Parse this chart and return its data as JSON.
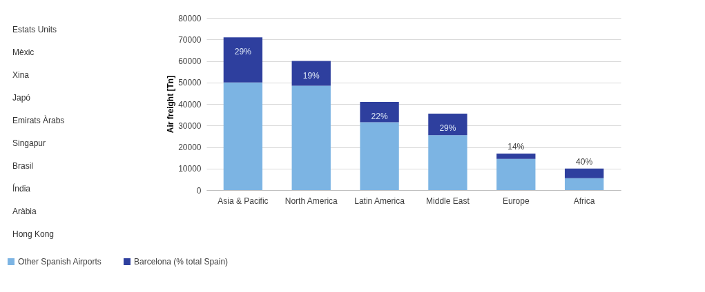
{
  "chart_data": [
    {
      "type": "other",
      "annotations": [
        "Estats Units",
        "Mèxic",
        "Xina",
        "Japó",
        "Emirats Àrabs",
        "Singapur",
        "Brasil",
        "Índia",
        "Aràbia",
        "Hong Kong"
      ]
    },
    {
      "type": "bar",
      "stacked": true,
      "ylabel": "Air freight [Tn]",
      "categories": [
        "Asia & Pacific",
        "North America",
        "Latin America",
        "Middle East",
        "Europe",
        "Africa"
      ],
      "series": [
        {
          "name": "Other Spanish Airports",
          "color": "#7cb4e3",
          "values": [
            50000,
            48500,
            31500,
            25500,
            14500,
            5500
          ]
        },
        {
          "name": "Barcelona (% total Spain)",
          "color": "#2e3f9e",
          "values": [
            21000,
            11500,
            9500,
            10000,
            2500,
            4500
          ]
        }
      ],
      "annotations": [
        {
          "text": "29%",
          "x": "Asia & Pacific",
          "y": 71000
        },
        {
          "text": "19%",
          "x": "North America",
          "y": 60000
        },
        {
          "text": "22%",
          "x": "Latin America",
          "y": 41000
        },
        {
          "text": "29%",
          "x": "Middle East",
          "y": 35500
        },
        {
          "text": "14%",
          "x": "Europe",
          "y": 17000
        },
        {
          "text": "40%",
          "x": "Africa",
          "y": 10000
        }
      ],
      "ylim": [
        0,
        80000
      ],
      "yticks": [
        0,
        10000,
        20000,
        30000,
        40000,
        50000,
        60000,
        70000,
        80000
      ],
      "grid": "y",
      "legend": "bottom"
    }
  ]
}
